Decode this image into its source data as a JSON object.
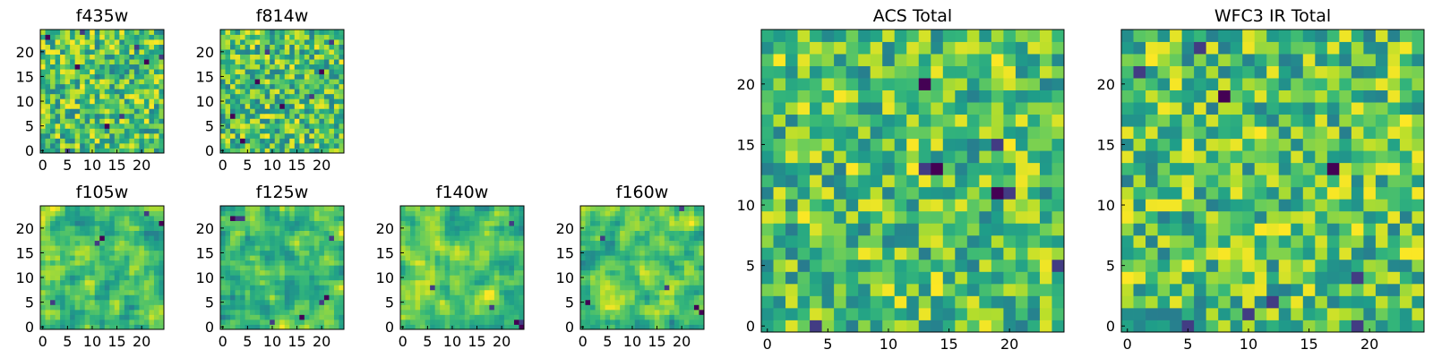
{
  "figure": {
    "colormap": "viridis",
    "colors": {
      "low": "#440154",
      "mid": "#21908d",
      "high": "#fde725"
    }
  },
  "chart_data": [
    {
      "type": "heatmap",
      "title": "f435w",
      "grid_size": 25,
      "xticks": [
        "0",
        "5",
        "10",
        "15",
        "20"
      ],
      "yticks": [
        "0",
        "5",
        "10",
        "15",
        "20"
      ],
      "xlim": [
        0,
        25
      ],
      "ylim": [
        0,
        25
      ],
      "seed": 11,
      "smooth": 0,
      "dark_cells": [
        [
          8,
          24
        ],
        [
          1,
          23
        ],
        [
          16,
          7
        ],
        [
          13,
          5
        ],
        [
          21,
          18
        ],
        [
          24,
          19
        ],
        [
          5,
          0
        ],
        [
          19,
          21
        ],
        [
          7,
          17
        ]
      ]
    },
    {
      "type": "heatmap",
      "title": "f814w",
      "grid_size": 25,
      "xticks": [
        "0",
        "5",
        "10",
        "15",
        "20"
      ],
      "yticks": [
        "0",
        "5",
        "10",
        "15",
        "20"
      ],
      "xlim": [
        0,
        25
      ],
      "ylim": [
        0,
        25
      ],
      "seed": 23,
      "smooth": 0,
      "dark_cells": [
        [
          20,
          16
        ],
        [
          12,
          9
        ],
        [
          4,
          2
        ],
        [
          2,
          7
        ],
        [
          7,
          14
        ],
        [
          22,
          22
        ],
        [
          18,
          11
        ],
        [
          9,
          20
        ]
      ]
    },
    {
      "type": "heatmap",
      "title": "f105w",
      "grid_size": 25,
      "xticks": [
        "0",
        "5",
        "10",
        "15",
        "20"
      ],
      "yticks": [
        "0",
        "5",
        "10",
        "15",
        "20"
      ],
      "xlim": [
        0,
        25
      ],
      "ylim": [
        0,
        25
      ],
      "seed": 37,
      "smooth": 1,
      "dark_cells": [
        [
          11,
          17
        ],
        [
          12,
          18
        ],
        [
          21,
          23
        ],
        [
          24,
          21
        ],
        [
          2,
          5
        ]
      ]
    },
    {
      "type": "heatmap",
      "title": "f125w",
      "grid_size": 25,
      "xticks": [
        "0",
        "5",
        "10",
        "15",
        "20"
      ],
      "yticks": [
        "0",
        "5",
        "10",
        "15",
        "20"
      ],
      "xlim": [
        0,
        25
      ],
      "ylim": [
        0,
        25
      ],
      "seed": 41,
      "smooth": 1,
      "dark_cells": [
        [
          20,
          5
        ],
        [
          21,
          6
        ],
        [
          2,
          22
        ],
        [
          3,
          22
        ],
        [
          4,
          22
        ],
        [
          16,
          2
        ],
        [
          22,
          18
        ],
        [
          10,
          1
        ]
      ]
    },
    {
      "type": "heatmap",
      "title": "f140w",
      "grid_size": 25,
      "xticks": [
        "0",
        "5",
        "10",
        "15",
        "20"
      ],
      "yticks": [
        "0",
        "5",
        "10",
        "15",
        "20"
      ],
      "xlim": [
        0,
        25
      ],
      "ylim": [
        0,
        25
      ],
      "seed": 53,
      "smooth": 1,
      "dark_cells": [
        [
          24,
          0
        ],
        [
          23,
          1
        ],
        [
          24,
          1
        ],
        [
          6,
          8
        ],
        [
          18,
          4
        ],
        [
          22,
          21
        ]
      ]
    },
    {
      "type": "heatmap",
      "title": "f160w",
      "grid_size": 25,
      "xticks": [
        "0",
        "5",
        "10",
        "15",
        "20"
      ],
      "yticks": [
        "0",
        "5",
        "10",
        "15",
        "20"
      ],
      "xlim": [
        0,
        25
      ],
      "ylim": [
        0,
        25
      ],
      "seed": 67,
      "smooth": 1,
      "dark_cells": [
        [
          23,
          4
        ],
        [
          24,
          3
        ],
        [
          20,
          24
        ],
        [
          1,
          5
        ],
        [
          17,
          8
        ],
        [
          4,
          18
        ]
      ]
    },
    {
      "type": "heatmap",
      "title": "ACS Total",
      "grid_size": 25,
      "xticks": [
        "0",
        "5",
        "10",
        "15",
        "20"
      ],
      "yticks": [
        "0",
        "5",
        "10",
        "15",
        "20"
      ],
      "xlim": [
        0,
        25
      ],
      "ylim": [
        0,
        25
      ],
      "seed": 79,
      "smooth": 0,
      "dark_cells": [
        [
          4,
          0
        ],
        [
          13,
          13
        ],
        [
          14,
          13
        ],
        [
          19,
          11
        ],
        [
          20,
          11
        ],
        [
          13,
          20
        ],
        [
          19,
          15
        ],
        [
          24,
          5
        ]
      ]
    },
    {
      "type": "heatmap",
      "title": "WFC3 IR Total",
      "grid_size": 25,
      "xticks": [
        "0",
        "5",
        "10",
        "15",
        "20"
      ],
      "yticks": [
        "0",
        "5",
        "10",
        "15",
        "20"
      ],
      "xlim": [
        0,
        25
      ],
      "ylim": [
        0,
        25
      ],
      "seed": 97,
      "smooth": 0,
      "dark_cells": [
        [
          8,
          19
        ],
        [
          6,
          23
        ],
        [
          1,
          21
        ],
        [
          5,
          0
        ],
        [
          10,
          1
        ],
        [
          19,
          0
        ],
        [
          17,
          13
        ],
        [
          19,
          4
        ],
        [
          12,
          2
        ]
      ]
    }
  ]
}
